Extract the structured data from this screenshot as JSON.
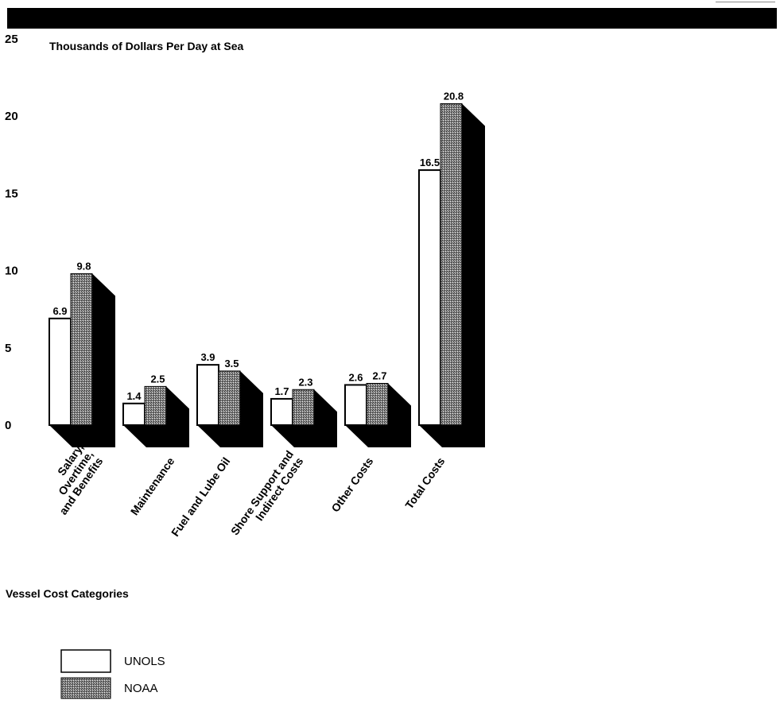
{
  "chart_data": {
    "type": "bar",
    "title": "Thousands of Dollars Per Day at Sea",
    "xlabel": "Vessel Cost Categories",
    "ylabel": "",
    "ylim": [
      0,
      25
    ],
    "yticks": [
      0,
      5,
      10,
      15,
      20,
      25
    ],
    "categories": [
      [
        "Salary,",
        "Overtime,",
        "and Benefits"
      ],
      [
        "Maintenance"
      ],
      [
        "Fuel and Lube Oil"
      ],
      [
        "Shore Support and",
        "Indirect Costs"
      ],
      [
        "Other Costs"
      ],
      [
        "Total Costs"
      ]
    ],
    "series": [
      {
        "name": "UNOLS",
        "values": [
          6.9,
          1.4,
          3.9,
          1.7,
          2.6,
          16.5
        ],
        "labels": [
          "6.9",
          "1.4",
          "3.9",
          "1.7",
          "2.6",
          "16.5"
        ]
      },
      {
        "name": "NOAA",
        "values": [
          9.8,
          2.5,
          3.5,
          2.3,
          2.7,
          20.8
        ],
        "labels": [
          "9.8",
          "2.5",
          "3.5",
          "2.3",
          "2.7",
          "20.8"
        ]
      }
    ],
    "style": "3d-bar",
    "grid": false,
    "legend": "bottom-left",
    "colors": {
      "UNOLS": "#ffffff",
      "NOAA": "#5a5a5a",
      "shadow": "#000000"
    }
  }
}
